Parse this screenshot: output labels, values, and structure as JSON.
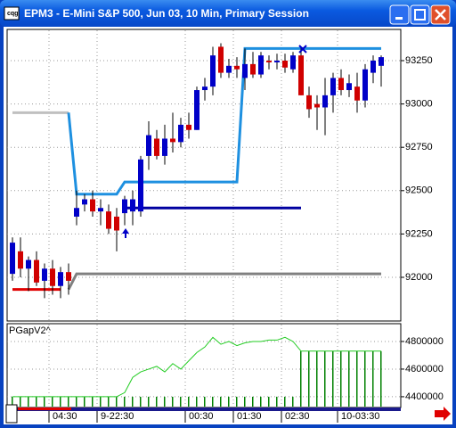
{
  "window": {
    "title": "EPM3 - E-Mini S&P 500, Jun 03, 10 Min, Primary Session"
  },
  "chart_data": [
    {
      "type": "candlestick",
      "categories": [
        null,
        null,
        null,
        null,
        null,
        "04:30",
        null,
        null,
        null,
        null,
        null,
        "9-22:30",
        null,
        null,
        null,
        null,
        null,
        null,
        null,
        null,
        null,
        null,
        "00:30",
        null,
        null,
        null,
        null,
        null,
        "01:30",
        null,
        null,
        null,
        null,
        null,
        "02:30",
        null,
        null,
        null,
        null,
        null,
        null,
        "10-03:30",
        null,
        null,
        null,
        null,
        null
      ],
      "open": [
        92020,
        92150,
        92050,
        92100,
        91980,
        92050,
        91950,
        92030,
        92350,
        92420,
        92450,
        92380,
        92380,
        92350,
        92370,
        92380,
        92380,
        92700,
        92800,
        92700,
        92800,
        92780,
        92880,
        92850,
        93080,
        93100,
        93330,
        93180,
        93220,
        93150,
        93230,
        93170,
        93250,
        93240,
        93250,
        93200,
        93280,
        93050,
        93000,
        92980,
        93050,
        93150,
        93080,
        93100,
        93020,
        93180,
        93220
      ],
      "high": [
        92230,
        92230,
        92120,
        92150,
        92080,
        92100,
        92060,
        92080,
        92500,
        92480,
        92500,
        92450,
        92420,
        92400,
        92470,
        92500,
        92700,
        92900,
        92850,
        92880,
        92950,
        92920,
        92950,
        93100,
        93150,
        93330,
        93350,
        93260,
        93270,
        93320,
        93300,
        93300,
        93280,
        93290,
        93290,
        93300,
        93330,
        93100,
        93050,
        93150,
        93180,
        93200,
        93170,
        93180,
        93230,
        93280,
        93280
      ],
      "low": [
        91980,
        92000,
        91920,
        91950,
        91880,
        91900,
        91880,
        91900,
        92300,
        92380,
        92350,
        92300,
        92250,
        92150,
        92300,
        92300,
        92350,
        92620,
        92680,
        92650,
        92720,
        92750,
        92800,
        92850,
        93020,
        93050,
        93150,
        93150,
        93150,
        93080,
        93150,
        93150,
        93200,
        93200,
        93180,
        93180,
        93050,
        92920,
        92850,
        92820,
        92950,
        93050,
        93040,
        92950,
        92980,
        93120,
        93100
      ],
      "close": [
        92200,
        92050,
        92100,
        91970,
        92050,
        91950,
        92030,
        91980,
        92400,
        92450,
        92380,
        92400,
        92280,
        92270,
        92450,
        92450,
        92680,
        92820,
        92700,
        92800,
        92780,
        92880,
        92850,
        93080,
        93100,
        93280,
        93180,
        93220,
        93200,
        93230,
        93170,
        93280,
        93240,
        93250,
        93210,
        93280,
        93050,
        92970,
        92980,
        93050,
        93150,
        93080,
        93120,
        93020,
        93200,
        93250,
        93270
      ],
      "up_color": "#0000c8",
      "down_color": "#d00000",
      "overlays": [
        {
          "color": "#c0c0c0",
          "values": [
            92950,
            92950,
            92950,
            92950,
            92950,
            92950,
            92950,
            92950,
            null,
            null,
            null,
            null,
            null,
            null,
            null,
            null,
            null,
            null,
            null,
            null,
            null,
            null,
            null,
            null,
            null,
            null,
            null,
            null,
            null,
            null,
            null,
            null,
            null,
            null,
            null,
            null,
            null,
            null,
            null,
            null,
            null,
            null,
            null,
            null,
            null,
            null,
            null
          ]
        },
        {
          "color": "#808080",
          "values": [
            null,
            null,
            null,
            null,
            null,
            null,
            null,
            91930,
            92020,
            92020,
            92020,
            92020,
            92020,
            92020,
            92020,
            92020,
            92020,
            92020,
            92020,
            92020,
            92020,
            92020,
            92020,
            92020,
            92020,
            92020,
            92020,
            92020,
            92020,
            92020,
            92020,
            92020,
            92020,
            92020,
            92020,
            92020,
            92020,
            92020,
            92020,
            92020,
            92020,
            92020,
            92020,
            92020,
            92020,
            92020,
            92020
          ]
        },
        {
          "color": "#e00000",
          "values": [
            91930,
            91930,
            91930,
            91930,
            91930,
            91930,
            91930,
            null,
            null,
            null,
            null,
            null,
            null,
            null,
            null,
            null,
            null,
            null,
            null,
            null,
            null,
            null,
            null,
            null,
            null,
            null,
            null,
            null,
            null,
            null,
            null,
            null,
            null,
            null,
            null,
            null,
            null,
            null,
            null,
            null,
            null,
            null,
            null,
            null,
            null,
            null,
            null
          ]
        },
        {
          "color": "#1e90e0",
          "values": [
            null,
            null,
            null,
            null,
            null,
            null,
            null,
            92950,
            92480,
            92480,
            92480,
            92480,
            92480,
            92480,
            92550,
            92550,
            92550,
            92550,
            92550,
            92550,
            92550,
            92550,
            92550,
            92550,
            92550,
            92550,
            92550,
            92550,
            92550,
            93320,
            93320,
            93320,
            93320,
            93320,
            93320,
            93320,
            93320,
            93320,
            93320,
            93320,
            93320,
            93320,
            93320,
            93320,
            93320,
            93320,
            93320
          ]
        },
        {
          "color": "#0000a0",
          "values": [
            null,
            null,
            null,
            null,
            null,
            null,
            null,
            null,
            null,
            null,
            null,
            null,
            null,
            null,
            92400,
            92400,
            92400,
            92400,
            92400,
            92400,
            92400,
            92400,
            92400,
            92400,
            92400,
            92400,
            92400,
            92400,
            92400,
            92400,
            92400,
            92400,
            92400,
            92400,
            92400,
            92400,
            92400,
            null,
            null,
            null,
            null,
            null,
            null,
            null,
            null,
            null,
            null
          ]
        }
      ],
      "ylim": [
        91748,
        93430
      ],
      "yticks": [
        92000,
        92250,
        92500,
        92750,
        93000,
        93250
      ],
      "grid": true
    },
    {
      "type": "combo",
      "title": "PGapV2^",
      "series": [
        {
          "type": "bar",
          "color": "#008000",
          "values": [
            4400000,
            4400000,
            4400000,
            4400000,
            4400000,
            4400000,
            4400000,
            4400000,
            4400000,
            4400000,
            4400000,
            4400000,
            4400000,
            4400000,
            4400000,
            4400000,
            4400000,
            4400000,
            4400000,
            4400000,
            4400000,
            4400000,
            4400000,
            4400000,
            4400000,
            4400000,
            4400000,
            4400000,
            4400000,
            4400000,
            4400000,
            4400000,
            4400000,
            4400000,
            4400000,
            4400000,
            4730000,
            4730000,
            4730000,
            4730000,
            4730000,
            4730000,
            4730000,
            4730000,
            4730000,
            4730000,
            4730000
          ]
        },
        {
          "type": "line",
          "color": "#22cc22",
          "values": [
            4400000,
            4400000,
            4400000,
            4400000,
            4400000,
            4400000,
            4400000,
            4400000,
            4400000,
            4400000,
            4400000,
            4400000,
            4400000,
            4400000,
            4430000,
            4540000,
            4580000,
            4600000,
            4620000,
            4580000,
            4640000,
            4600000,
            4660000,
            4720000,
            4760000,
            4830000,
            4780000,
            4800000,
            4770000,
            4790000,
            4800000,
            4800000,
            4810000,
            4810000,
            4830000,
            4800000,
            4730000,
            4730000,
            4730000,
            4730000,
            4730000,
            4730000,
            4730000,
            4730000,
            4730000,
            4730000,
            4730000
          ]
        }
      ],
      "ylim": [
        4335000,
        4916000
      ],
      "yticks": [
        4400000,
        4600000,
        4800000
      ],
      "grid": true
    }
  ]
}
